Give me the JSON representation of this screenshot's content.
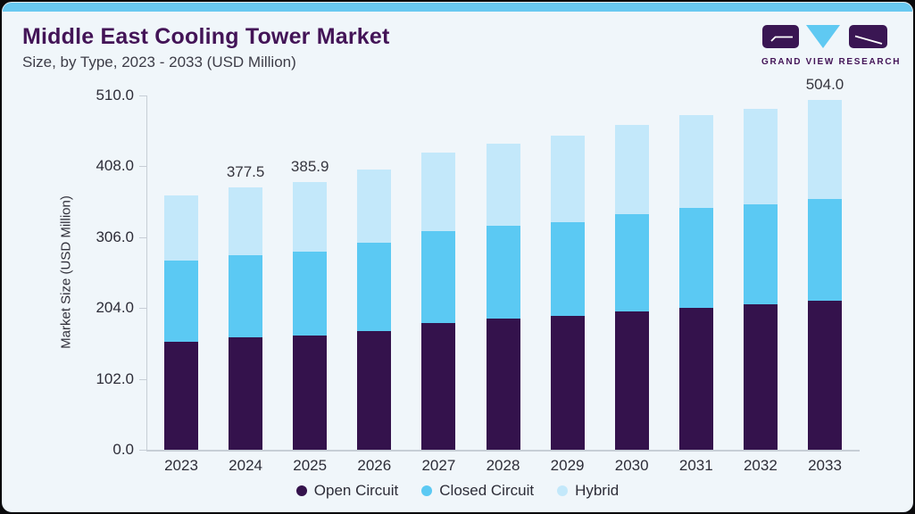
{
  "header": {
    "title": "Middle East Cooling Tower Market",
    "subtitle": "Size, by Type, 2023 - 2033 (USD Million)"
  },
  "logo": {
    "text": "GRAND VIEW RESEARCH",
    "mark_icons": [
      "g-tile-icon",
      "v-triangle-icon",
      "r-tile-icon"
    ]
  },
  "colors": {
    "accent_bar": "#69c9f1",
    "card_background": "#f0f6fa",
    "title_purple": "#431457",
    "open_circuit": "#34124c",
    "closed_circuit": "#5bc9f3",
    "hybrid": "#c3e8fa",
    "axis_line": "#c7ced6",
    "text_dark": "#2d2d38"
  },
  "chart_data": {
    "type": "bar",
    "stacked": true,
    "title": "Middle East Cooling Tower Market Size, by Type, 2023 - 2033 (USD Million)",
    "xlabel": "",
    "ylabel": "Market Size (USD Million)",
    "ylim": [
      0,
      510
    ],
    "grid": false,
    "legend_position": "bottom",
    "categories": [
      "2023",
      "2024",
      "2025",
      "2026",
      "2027",
      "2028",
      "2029",
      "2030",
      "2031",
      "2032",
      "2033"
    ],
    "series": [
      {
        "name": "Open Circuit",
        "color": "#34124c",
        "values": [
          156.0,
          161.3,
          165.0,
          171.1,
          182.1,
          188.3,
          192.7,
          198.9,
          204.6,
          209.9,
          214.2
        ]
      },
      {
        "name": "Closed Circuit",
        "color": "#5bc9f3",
        "values": [
          116.0,
          118.3,
          120.5,
          126.5,
          132.3,
          134.4,
          135.3,
          140.6,
          142.9,
          143.3,
          146.5
        ]
      },
      {
        "name": "Hybrid",
        "color": "#c3e8fa",
        "values": [
          94.4,
          97.9,
          100.4,
          105.5,
          112.9,
          117.7,
          124.0,
          127.5,
          134.6,
          138.0,
          143.3
        ]
      }
    ],
    "totals": [
      366.4,
      377.5,
      385.9,
      403.1,
      427.3,
      440.4,
      452.0,
      467.0,
      482.1,
      491.2,
      504.0
    ],
    "bar_labels": {
      "2024": "377.5",
      "2025": "385.9",
      "2033": "504.0"
    },
    "y_ticks": [
      0,
      102,
      204,
      306,
      408,
      510
    ],
    "y_tick_labels": [
      "0.0",
      "102.0",
      "204.0",
      "306.0",
      "408.0",
      "510.0"
    ]
  }
}
